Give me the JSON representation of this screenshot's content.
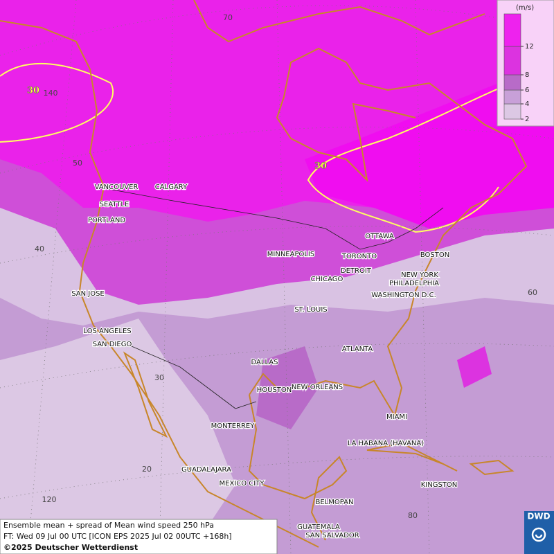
{
  "map": {
    "legend": {
      "unit": "(m/s)",
      "ticks": [
        2,
        4,
        6,
        8,
        12
      ]
    },
    "contour_labels": [
      "30",
      "30"
    ],
    "graticule_labels": [
      "70",
      "140",
      "50",
      "40",
      "60",
      "30",
      "20",
      "120",
      "80"
    ],
    "cities": [
      "VANCOUVER",
      "CALGARY",
      "SEATTLE",
      "PORTLAND",
      "MINNEAPOLIS",
      "TORONTO",
      "OTTAWA",
      "BOSTON",
      "DETROIT",
      "CHICAGO",
      "NEW YORK",
      "PHILADELPHIA",
      "WASHINGTON D.C.",
      "SAN JOSE",
      "ST. LOUIS",
      "LOS ANGELES",
      "SAN DIEGO",
      "ATLANTA",
      "DALLAS",
      "HOUSTON",
      "NEW ORLEANS",
      "MONTERREY",
      "MIAMI",
      "LA HABANA (HAVANA)",
      "GUADALAJARA",
      "MEXICO CITY",
      "KINGSTON",
      "BELMOPAN",
      "GUATEMALA",
      "SAN SALVADOR"
    ],
    "caption": [
      "Ensemble mean + spread of Mean wind speed 250 hPa",
      "FT: Wed 09 Jul 00 UTC [ICON EPS 2025 Jul 02 00UTC +168h]"
    ],
    "copyright": "©2025 Deutscher Wetterdienst",
    "logo": "DWD"
  }
}
